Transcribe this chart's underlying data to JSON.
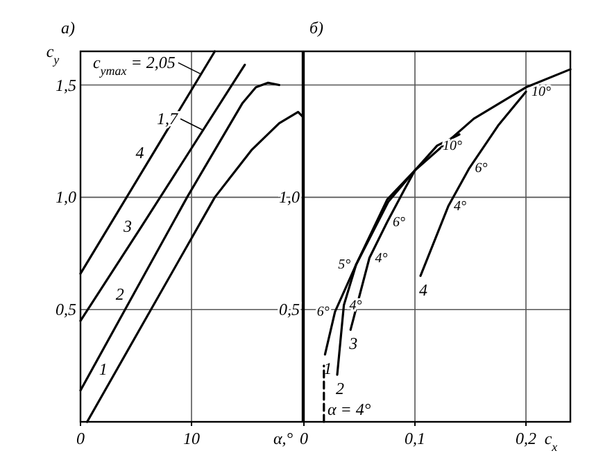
{
  "chart_data": [
    {
      "type": "line",
      "title": "а)",
      "xlabel": "α,°",
      "ylabel": "c$_{y}$",
      "xlim": [
        0,
        20
      ],
      "ylim": [
        0,
        1.65
      ],
      "xticks": [
        {
          "value": 0,
          "label": "0"
        },
        {
          "value": 10,
          "label": "10"
        }
      ],
      "yticks": [
        {
          "value": 0.5,
          "label": "0,5"
        },
        {
          "value": 1,
          "label": "1,0"
        },
        {
          "value": 1.5,
          "label": "1,5"
        }
      ],
      "grid": true,
      "series": [
        {
          "name": "4",
          "color": "#000000",
          "x": [
            0,
            6.6,
            12.1
          ],
          "values": [
            0.66,
            1.2,
            1.65
          ]
        },
        {
          "name": "3",
          "color": "#000000",
          "x": [
            0,
            5.5,
            14.8
          ],
          "values": [
            0.45,
            0.87,
            1.59
          ]
        },
        {
          "name": "2",
          "color": "#000000",
          "x": [
            0,
            4.8,
            9.6,
            14.6,
            15.8,
            16.9,
            17.9
          ],
          "values": [
            0.14,
            0.57,
            1.0,
            1.42,
            1.49,
            1.51,
            1.5
          ]
        },
        {
          "name": "1",
          "color": "#000000",
          "x": [
            0.6,
            3.3,
            12.1,
            15.4,
            17.9,
            19.6,
            20
          ],
          "values": [
            0,
            0.235,
            1.0,
            1.21,
            1.33,
            1.38,
            1.36
          ]
        }
      ],
      "annotations": [
        {
          "text": "c$_{ymax}$ = 2,05",
          "x": 10.8,
          "y": 1.55
        },
        {
          "text": "1,7",
          "x": 11,
          "y": 1.3
        }
      ]
    },
    {
      "type": "line",
      "title": "б)",
      "xlabel": "c$_{x}$",
      "xlim": [
        0,
        0.24
      ],
      "ylim": [
        0,
        1.65
      ],
      "xticks": [
        {
          "value": 0,
          "label": "0"
        },
        {
          "value": 0.1,
          "label": "0,1"
        },
        {
          "value": 0.2,
          "label": "0,2"
        }
      ],
      "yticks": [
        {
          "value": 0.5,
          "label": "0,5"
        },
        {
          "value": 1,
          "label": "1,0"
        },
        {
          "value": 1.5,
          "label": null
        }
      ],
      "grid": true,
      "series": [
        {
          "name": "1",
          "color": "#000000",
          "x": [
            0.019,
            0.028,
            0.047,
            0.076,
            0.1,
            0.153,
            0.2,
            0.24
          ],
          "values": [
            0.3,
            0.49,
            0.7,
            0.98,
            1.12,
            1.35,
            1.49,
            1.57
          ]
        },
        {
          "name": "2",
          "color": "#000000",
          "x": [
            0.03,
            0.036,
            0.047,
            0.075,
            0.1,
            0.12,
            0.14
          ],
          "values": [
            0.21,
            0.52,
            0.7,
            0.99,
            1.12,
            1.23,
            1.28
          ]
        },
        {
          "name": "3",
          "color": "#000000",
          "x": [
            0.042,
            0.059,
            0.075,
            0.09,
            0.1
          ],
          "values": [
            0.41,
            0.73,
            0.89,
            1.03,
            1.12
          ]
        },
        {
          "name": "4",
          "color": "#000000",
          "x": [
            0.105,
            0.13,
            0.149,
            0.175,
            0.2
          ],
          "values": [
            0.65,
            0.96,
            1.13,
            1.32,
            1.47
          ]
        },
        {
          "color": "#000000",
          "x": [
            0.018,
            0.018
          ],
          "values": [
            0,
            0.25
          ],
          "line_style": "dashed"
        }
      ],
      "annotations": [
        "α = 4°",
        {
          "text": "6°",
          "x": 0.028,
          "y": 0.49
        },
        {
          "text": "4°",
          "x": 0.036,
          "y": 0.52
        },
        {
          "text": "5°",
          "x": 0.047,
          "y": 0.7
        },
        {
          "text": "4°",
          "x": 0.059,
          "y": 0.73
        },
        {
          "text": "6°",
          "x": 0.075,
          "y": 0.89
        },
        {
          "text": "10°",
          "x": 0.12,
          "y": 1.23
        },
        {
          "text": "4°",
          "x": 0.13,
          "y": 0.96
        },
        {
          "text": "6°",
          "x": 0.149,
          "y": 1.13
        },
        {
          "text": "10°",
          "x": 0.2,
          "y": 1.47
        }
      ]
    }
  ]
}
